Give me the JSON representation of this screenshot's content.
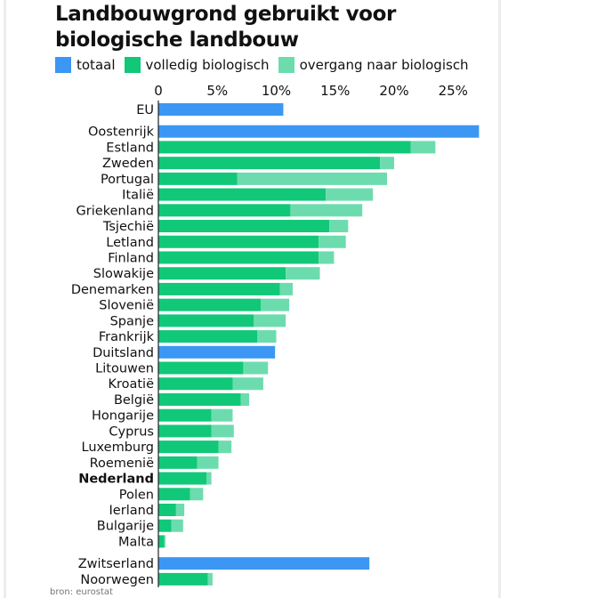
{
  "title": "Landbouwgrond gebruikt voor biologische landbouw",
  "legend": [
    {
      "label": "totaal",
      "color": "#3b97f3"
    },
    {
      "label": "volledig biologisch",
      "color": "#10c878"
    },
    {
      "label": "overgang naar biologisch",
      "color": "#6cdcae"
    }
  ],
  "source": "bron: eurostat",
  "chart_data": {
    "type": "bar",
    "orientation": "horizontal",
    "stacked": true,
    "title": "Landbouwgrond gebruikt voor biologische landbouw",
    "x_tick_labels": [
      "0",
      "5%",
      "10%",
      "15%",
      "20%",
      "25%"
    ],
    "x_ticks": [
      0,
      5,
      10,
      15,
      20,
      25
    ],
    "xlim": [
      0,
      28
    ],
    "grid": false,
    "legend_position": "top",
    "categories": [
      "EU",
      "Oostenrijk",
      "Estland",
      "Zweden",
      "Portugal",
      "Italië",
      "Griekenland",
      "Tsjechië",
      "Letland",
      "Finland",
      "Slowakije",
      "Denemarken",
      "Slovenië",
      "Spanje",
      "Frankrijk",
      "Duitsland",
      "Litouwen",
      "Kroatië",
      "België",
      "Hongarije",
      "Cyprus",
      "Luxemburg",
      "Roemenië",
      "Nederland",
      "Polen",
      "Ierland",
      "Bulgarije",
      "Malta",
      "Zwitserland",
      "Noorwegen"
    ],
    "bold_categories": [
      "Nederland"
    ],
    "gap_before": [
      "Oostenrijk",
      "Zwitserland"
    ],
    "series": [
      {
        "name": "totaal",
        "color": "#3b97f3",
        "values": [
          10.6,
          27.2,
          null,
          null,
          null,
          null,
          null,
          null,
          null,
          null,
          null,
          null,
          null,
          null,
          null,
          9.9,
          null,
          null,
          null,
          null,
          null,
          null,
          null,
          null,
          null,
          null,
          null,
          null,
          17.9,
          null
        ]
      },
      {
        "name": "volledig biologisch",
        "color": "#10c878",
        "values": [
          null,
          null,
          21.4,
          18.8,
          6.7,
          14.2,
          11.2,
          14.5,
          13.6,
          13.6,
          10.8,
          10.3,
          8.7,
          8.1,
          8.4,
          null,
          7.2,
          6.3,
          7.0,
          4.5,
          4.5,
          5.1,
          3.3,
          4.1,
          2.7,
          1.5,
          1.1,
          0.5,
          null,
          4.2
        ]
      },
      {
        "name": "overgang naar biologisch",
        "color": "#6cdcae",
        "values": [
          null,
          null,
          2.1,
          1.2,
          12.7,
          4.0,
          6.1,
          1.6,
          2.3,
          1.3,
          2.9,
          1.1,
          2.4,
          2.7,
          1.6,
          null,
          2.1,
          2.6,
          0.7,
          1.8,
          1.9,
          1.1,
          1.8,
          0.4,
          1.1,
          0.7,
          1.0,
          0.1,
          null,
          0.4
        ]
      }
    ]
  }
}
